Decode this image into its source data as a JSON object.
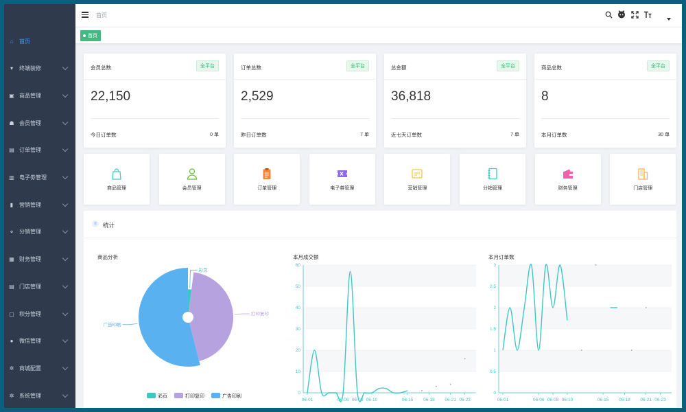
{
  "breadcrumb": "首页",
  "tags": [
    {
      "label": "首页"
    }
  ],
  "sidebar": {
    "items": [
      {
        "label": "首页",
        "icon": "home-icon",
        "active": true,
        "expandable": false
      },
      {
        "label": "终端装修",
        "icon": "shirt-icon",
        "expandable": true
      },
      {
        "label": "商品管理",
        "icon": "box-icon",
        "expandable": true
      },
      {
        "label": "会员管理",
        "icon": "users-icon",
        "expandable": true
      },
      {
        "label": "订单管理",
        "icon": "lock-icon",
        "expandable": true
      },
      {
        "label": "电子劵管理",
        "icon": "ticket-icon",
        "expandable": true
      },
      {
        "label": "营销管理",
        "icon": "bar-chart-icon",
        "expandable": true
      },
      {
        "label": "分销管理",
        "icon": "share-icon",
        "expandable": true
      },
      {
        "label": "财务管理",
        "icon": "finance-icon",
        "expandable": true
      },
      {
        "label": "门店管理",
        "icon": "store-icon",
        "expandable": true
      },
      {
        "label": "积分管理",
        "icon": "points-icon",
        "expandable": true
      },
      {
        "label": "微信管理",
        "icon": "wechat-icon",
        "expandable": true
      },
      {
        "label": "商城配置",
        "icon": "gear-icon",
        "expandable": true
      },
      {
        "label": "系统管理",
        "icon": "settings-icon",
        "expandable": true
      }
    ]
  },
  "header_icons": [
    "search-icon",
    "github-icon",
    "fullscreen-icon",
    "font-size-icon"
  ],
  "stat_cards": [
    {
      "title": "会员总数",
      "badge": "全平台",
      "value": "22,150",
      "foot_label": "今日订单数",
      "foot_value": "0 单"
    },
    {
      "title": "订单总数",
      "badge": "全平台",
      "value": "2,529",
      "foot_label": "昨日订单数",
      "foot_value": "7 单"
    },
    {
      "title": "总金额",
      "badge": "全平台",
      "value": "36,818",
      "foot_label": "近七天订单数",
      "foot_value": "7 单"
    },
    {
      "title": "商品总数",
      "badge": "全平台",
      "value": "8",
      "foot_label": "本月订单数",
      "foot_value": "30 单"
    }
  ],
  "quick_links": [
    {
      "label": "商品管理",
      "icon": "shopping-bag-icon",
      "color": "#40c9c6"
    },
    {
      "label": "会员管理",
      "icon": "user-icon",
      "color": "#67c23a"
    },
    {
      "label": "订单管理",
      "icon": "clipboard-icon",
      "color": "#f4863e"
    },
    {
      "label": "电子券管理",
      "icon": "coupon-icon",
      "color": "#8d6be8"
    },
    {
      "label": "营销管理",
      "icon": "marketing-icon",
      "color": "#f7c242"
    },
    {
      "label": "分销管理",
      "icon": "notebook-icon",
      "color": "#40c9c6"
    },
    {
      "label": "财务管理",
      "icon": "wallet-icon",
      "color": "#f45fa9"
    },
    {
      "label": "门店管理",
      "icon": "building-icon",
      "color": "#f7b552"
    }
  ],
  "stats_panel": {
    "title": "统计"
  },
  "chart_data": [
    {
      "type": "pie",
      "title": "商品分析",
      "slices": [
        {
          "name": "彩页",
          "value": 2,
          "color": "#3ec6c4"
        },
        {
          "name": "打印复印",
          "value": 44,
          "color": "#b6a2de"
        },
        {
          "name": "广告印刷",
          "value": 54,
          "color": "#5ab1ef"
        }
      ],
      "legend": "bottom"
    },
    {
      "type": "line",
      "title": "本月成交额",
      "x": [
        "06-01",
        "06-02",
        "06-03",
        "06-04",
        "06-05",
        "06-06",
        "06-07",
        "06-08",
        "06-09",
        "06-10",
        "06-11",
        "06-12",
        "06-13",
        "06-14",
        "06-15",
        "06-16",
        "06-17",
        "06-18",
        "06-19",
        "06-20",
        "06-21",
        "06-22",
        "06-23",
        "06-24"
      ],
      "x_ticks": [
        "06-01",
        "06-06",
        "06-08",
        "06-10",
        "06-15",
        "06-18",
        "06-21",
        "06-23"
      ],
      "values": [
        0,
        20,
        0,
        0,
        0,
        0,
        57,
        0,
        0,
        0,
        2,
        2,
        0,
        0,
        1,
        null,
        1,
        null,
        3,
        null,
        4,
        null,
        16,
        null
      ],
      "ylim": [
        0,
        60
      ],
      "y_ticks": [
        0,
        10,
        20,
        30,
        40,
        50,
        60
      ],
      "color": "#3ec6c4",
      "grid": true
    },
    {
      "type": "line",
      "title": "本月订单数",
      "x": [
        "06-01",
        "06-02",
        "06-03",
        "06-04",
        "06-05",
        "06-06",
        "06-07",
        "06-08",
        "06-09",
        "06-10",
        "06-11",
        "06-12",
        "06-13",
        "06-14",
        "06-15",
        "06-16",
        "06-17",
        "06-18",
        "06-19",
        "06-20",
        "06-21",
        "06-22",
        "06-23",
        "06-24"
      ],
      "x_ticks": [
        "06-01",
        "06-06",
        "06-08",
        "06-10",
        "06-15",
        "06-18",
        "06-21",
        "06-23"
      ],
      "values": [
        1,
        2,
        1,
        2,
        3,
        1,
        3,
        2,
        3,
        1.7,
        null,
        1,
        null,
        3,
        null,
        2,
        2,
        null,
        1,
        null,
        2,
        null,
        null,
        null
      ],
      "ylim": [
        0,
        3
      ],
      "y_ticks": [
        0,
        0.5,
        1,
        1.5,
        2,
        2.5,
        3
      ],
      "color": "#3ec6c4",
      "grid": true
    }
  ]
}
